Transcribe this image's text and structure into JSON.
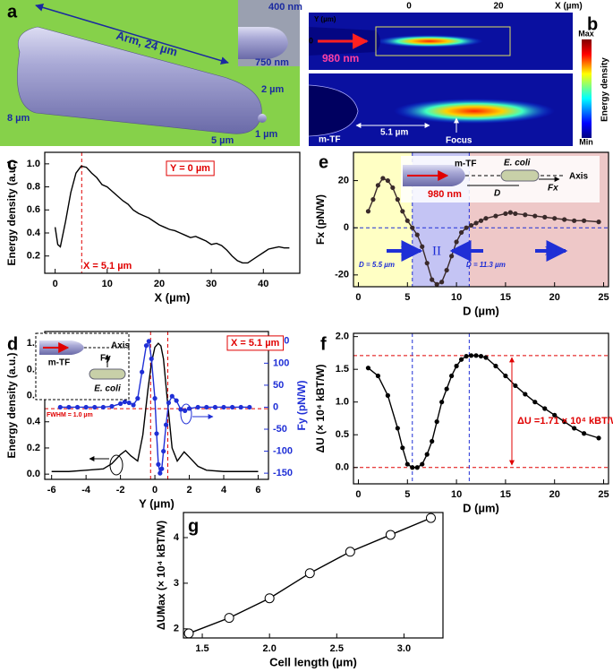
{
  "panel_a": {
    "label": "a",
    "annotations": [
      "Arm, 24 µm",
      "400 nm",
      "750 nm",
      "2 µm",
      "8 µm",
      "5 µm",
      "1 µm"
    ]
  },
  "panel_b": {
    "label": "b",
    "annotations": [
      "X (µm)",
      "0",
      "20",
      "Y (µm)",
      "0",
      "980 nm",
      "m-TF",
      "5.1 µm",
      "Focus"
    ],
    "colorbar": {
      "title": "Energy density",
      "max_label": "Max",
      "min_label": "Min"
    }
  },
  "chart_data": [
    {
      "type": "line",
      "label": "c",
      "xlabel": "X (µm)",
      "ylabel": "Energy density (a.u.)",
      "xlim": [
        -2,
        47
      ],
      "xticks": [
        0,
        10,
        20,
        30,
        40
      ],
      "ylim": [
        0.05,
        1.1
      ],
      "yticks": [
        0.2,
        0.4,
        0.6,
        0.8,
        {
          "value": 1,
          "label": "1.0"
        }
      ],
      "series": [
        {
          "color": "#000000",
          "marker": "none",
          "x": [
            0,
            0.5,
            1,
            2,
            3,
            4,
            5,
            6,
            7,
            8,
            9,
            10,
            11,
            12,
            13,
            14,
            15,
            16,
            17,
            18,
            19,
            20,
            21,
            22,
            23,
            24,
            25,
            26,
            27,
            28,
            29,
            30,
            31,
            32,
            33,
            34,
            35,
            36,
            37,
            38,
            39,
            40,
            41,
            42,
            43,
            44,
            45
          ],
          "values": [
            0.45,
            0.3,
            0.28,
            0.5,
            0.75,
            0.92,
            0.98,
            0.97,
            0.92,
            0.88,
            0.82,
            0.8,
            0.76,
            0.72,
            0.68,
            0.65,
            0.6,
            0.57,
            0.55,
            0.53,
            0.5,
            0.47,
            0.45,
            0.43,
            0.42,
            0.4,
            0.38,
            0.36,
            0.37,
            0.35,
            0.33,
            0.3,
            0.31,
            0.29,
            0.25,
            0.2,
            0.16,
            0.14,
            0.14,
            0.17,
            0.2,
            0.23,
            0.26,
            0.27,
            0.28,
            0.27,
            0.27
          ]
        }
      ],
      "vlines": [
        {
          "x": 5.1,
          "color": "#e00000"
        }
      ],
      "annotations": [
        "Y = 0 µm",
        "X = 5.1 µm"
      ]
    },
    {
      "type": "line",
      "label": "d",
      "xlabel": "Y (µm)",
      "ylabel": "Energy density (a.u.)",
      "y2label": "Fy (pN/W)",
      "xlim": [
        -6.4,
        6.6
      ],
      "xticks": [
        -6,
        -4,
        -2,
        0,
        2,
        4,
        6
      ],
      "ylim": [
        -0.04,
        1.09
      ],
      "yticks": [
        {
          "value": 0,
          "label": "0.0"
        },
        0.2,
        0.4,
        0.6,
        0.8,
        {
          "value": 1,
          "label": "1.0"
        }
      ],
      "y2lim": [
        -164,
        172
      ],
      "y2ticks": [
        -150,
        -100,
        -50,
        0,
        50,
        100,
        150
      ],
      "series": [
        {
          "color": "#000000",
          "marker": "none",
          "x": [
            -6,
            -5,
            -4,
            -3,
            -2.5,
            -2,
            -1.7,
            -1.4,
            -1,
            -0.7,
            -0.4,
            -0.2,
            0,
            0.2,
            0.35,
            0.5,
            0.7,
            1,
            1.3,
            1.7,
            2,
            2.5,
            3,
            4,
            5,
            6
          ],
          "values": [
            0.02,
            0.02,
            0.03,
            0.04,
            0.08,
            0.15,
            0.18,
            0.14,
            0.1,
            0.3,
            0.65,
            0.85,
            0.97,
            1.0,
            0.98,
            0.88,
            0.6,
            0.2,
            0.1,
            0.17,
            0.13,
            0.06,
            0.03,
            0.02,
            0.02,
            0.02
          ]
        },
        {
          "color": "#1f2fd6",
          "marker": "dot",
          "axis": "y2",
          "x": [
            -5.5,
            -5,
            -4.5,
            -4,
            -3.5,
            -3,
            -2.5,
            -2,
            -1.75,
            -1.5,
            -1.25,
            -1,
            -0.75,
            -0.5,
            -0.35,
            -0.2,
            0,
            0.1,
            0.2,
            0.3,
            0.4,
            0.5,
            0.65,
            0.8,
            1,
            1.25,
            1.5,
            1.75,
            2,
            2.5,
            3,
            3.5,
            4,
            4.5,
            5,
            5.5
          ],
          "values": [
            0,
            0,
            0,
            0,
            0,
            0,
            2,
            8,
            12,
            10,
            5,
            20,
            80,
            140,
            150,
            110,
            20,
            -60,
            -130,
            -150,
            -140,
            -100,
            -40,
            10,
            25,
            15,
            -5,
            -8,
            -3,
            0,
            0,
            0,
            0,
            0,
            0,
            0
          ]
        }
      ],
      "hlines": [
        {
          "y": 0.5,
          "color": "#e00000"
        }
      ],
      "vlines": [
        {
          "x": -0.25,
          "color": "#e00000"
        },
        {
          "x": 0.75,
          "color": "#e00000"
        }
      ],
      "annotations": [
        "X = 5.1 µm",
        "FWHM = 1.0 µm",
        "m-TF",
        "Fy",
        "Axis",
        "E. coli"
      ]
    },
    {
      "type": "line",
      "label": "e",
      "xlabel": "D (µm)",
      "ylabel": "Fx (pN/W)",
      "xlim": [
        -0.5,
        25.5
      ],
      "xticks": [
        0,
        5,
        10,
        15,
        20,
        25
      ],
      "ylim": [
        -25,
        32
      ],
      "yticks": [
        -20,
        0,
        20
      ],
      "regions": [
        {
          "from": -0.5,
          "to": 5.5,
          "color": "#ffffc4"
        },
        {
          "from": 5.5,
          "to": 11.3,
          "color": "#c4c4f4"
        },
        {
          "from": 11.3,
          "to": 25.5,
          "color": "#eec8c8"
        }
      ],
      "series": [
        {
          "color": "#3a2a2a",
          "marker": "dot",
          "x": [
            1,
            1.5,
            2,
            2.5,
            3,
            3.5,
            4,
            4.5,
            5,
            5.5,
            6,
            6.5,
            7,
            7.5,
            8,
            8.5,
            9,
            9.5,
            10,
            10.5,
            11,
            11.5,
            12,
            12.5,
            13,
            14,
            15,
            15.5,
            16,
            17,
            18,
            19,
            20,
            21,
            22,
            23,
            24.5
          ],
          "values": [
            7,
            12,
            18,
            21,
            20,
            17,
            12,
            7,
            3,
            0,
            -3,
            -8,
            -15,
            -22,
            -24,
            -23,
            -18,
            -12,
            -6,
            -2,
            0,
            1,
            2,
            3,
            4,
            5,
            6,
            6.5,
            6,
            5.5,
            5,
            4.5,
            4,
            3.5,
            3,
            3,
            2.5
          ]
        }
      ],
      "hlines": [
        {
          "y": 0,
          "color": "#1f2fd6"
        }
      ],
      "vlines": [
        {
          "x": 5.5,
          "color": "#1f2fd6"
        },
        {
          "x": 11.3,
          "color": "#1f2fd6"
        }
      ],
      "annotations": [
        "I",
        "II",
        "III",
        "D = 5.5 µm",
        "D = 11.3 µm",
        "m-TF",
        "980 nm",
        "E. coli",
        "Axis",
        "D",
        "Fx"
      ]
    },
    {
      "type": "line",
      "label": "f",
      "xlabel": "D (µm)",
      "ylabel": "ΔU (× 10⁴ kBT/W)",
      "xlim": [
        -0.5,
        25.5
      ],
      "xticks": [
        0,
        5,
        10,
        15,
        20,
        25
      ],
      "ylim": [
        -0.25,
        2.05
      ],
      "yticks": [
        {
          "value": 0,
          "label": "0.0"
        },
        0.5,
        {
          "value": 1,
          "label": "1.0"
        },
        1.5,
        {
          "value": 2,
          "label": "2.0"
        }
      ],
      "series": [
        {
          "color": "#000000",
          "marker": "dot",
          "x": [
            1,
            2,
            3,
            4,
            4.5,
            5,
            5.5,
            6,
            6.5,
            7,
            7.5,
            8,
            8.5,
            9,
            9.5,
            10,
            10.5,
            11,
            11.5,
            12,
            12.5,
            13,
            14,
            15,
            16,
            17,
            18,
            19,
            20,
            21,
            22,
            23,
            24.5
          ],
          "values": [
            1.52,
            1.4,
            1.1,
            0.6,
            0.3,
            0.05,
            0,
            0,
            0.05,
            0.2,
            0.4,
            0.7,
            1,
            1.2,
            1.4,
            1.55,
            1.65,
            1.7,
            1.71,
            1.71,
            1.7,
            1.68,
            1.55,
            1.4,
            1.25,
            1.12,
            1,
            0.9,
            0.8,
            0.7,
            0.6,
            0.52,
            0.45
          ]
        }
      ],
      "hlines": [
        {
          "y": 0,
          "color": "#e00000"
        },
        {
          "y": 1.71,
          "color": "#e00000"
        }
      ],
      "vlines": [
        {
          "x": 5.5,
          "color": "#1f2fd6"
        },
        {
          "x": 11.3,
          "color": "#1f2fd6"
        }
      ],
      "annotations": [
        "ΔU =1.71 × 10⁴ kBT/W"
      ]
    },
    {
      "type": "line",
      "label": "g",
      "xlabel": "Cell length (µm)",
      "ylabel": "ΔUMax (× 10⁴ kBT/W)",
      "xlim": [
        1.36,
        3.29
      ],
      "xticks": [
        1.5,
        {
          "value": 2,
          "label": "2.0"
        },
        2.5,
        {
          "value": 3,
          "label": "3.0"
        }
      ],
      "ylim": [
        1.8,
        4.55
      ],
      "yticks": [
        2,
        3,
        4
      ],
      "series": [
        {
          "color": "#000000",
          "marker": "open",
          "x": [
            1.4,
            1.7,
            2.0,
            2.3,
            2.6,
            2.9,
            3.2
          ],
          "values": [
            1.9,
            2.24,
            2.67,
            3.22,
            3.69,
            4.06,
            4.43
          ]
        }
      ],
      "annotations": []
    }
  ]
}
